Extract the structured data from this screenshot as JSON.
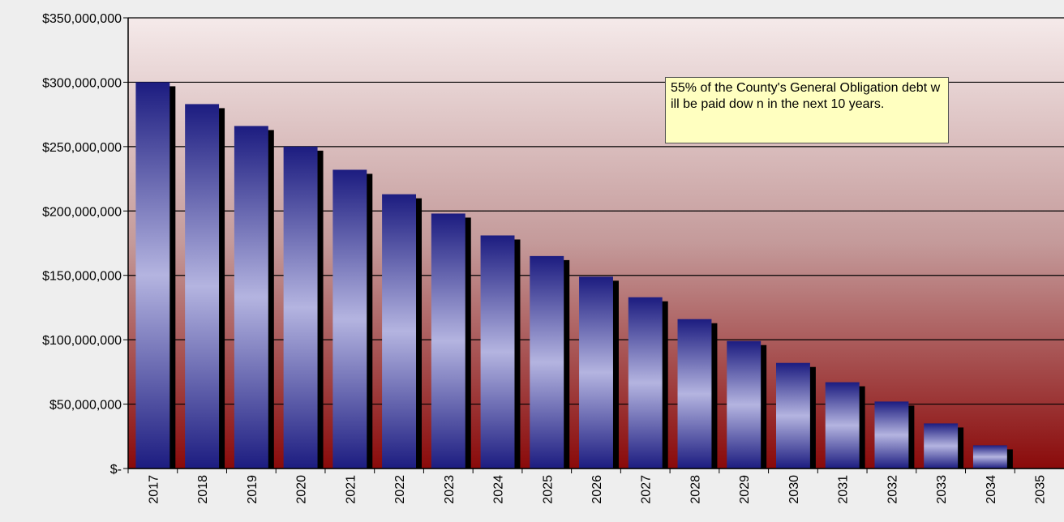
{
  "chart_data": {
    "type": "bar",
    "annotation": "55% of the County's General Obligation debt w ill be paid dow n in the next 10 years.",
    "categories": [
      "2017",
      "2018",
      "2019",
      "2020",
      "2021",
      "2022",
      "2023",
      "2024",
      "2025",
      "2026",
      "2027",
      "2028",
      "2029",
      "2030",
      "2031",
      "2032",
      "2033",
      "2034",
      "2035"
    ],
    "values": [
      300000000,
      283000000,
      266000000,
      250000000,
      232000000,
      213000000,
      198000000,
      181000000,
      165000000,
      149000000,
      133000000,
      116000000,
      99000000,
      82000000,
      67000000,
      52000000,
      35000000,
      18000000,
      0
    ],
    "color": "#1c1c80",
    "ylim": [
      0,
      350000000
    ],
    "yticks": [
      {
        "value": 0,
        "label": "$-"
      },
      {
        "value": 50000000,
        "label": "$50,000,000"
      },
      {
        "value": 100000000,
        "label": "$100,000,000"
      },
      {
        "value": 150000000,
        "label": "$150,000,000"
      },
      {
        "value": 200000000,
        "label": "$200,000,000"
      },
      {
        "value": 250000000,
        "label": "$250,000,000"
      },
      {
        "value": 300000000,
        "label": "$300,000,000"
      },
      {
        "value": 350000000,
        "label": "$350,000,000"
      }
    ],
    "grid": true
  }
}
